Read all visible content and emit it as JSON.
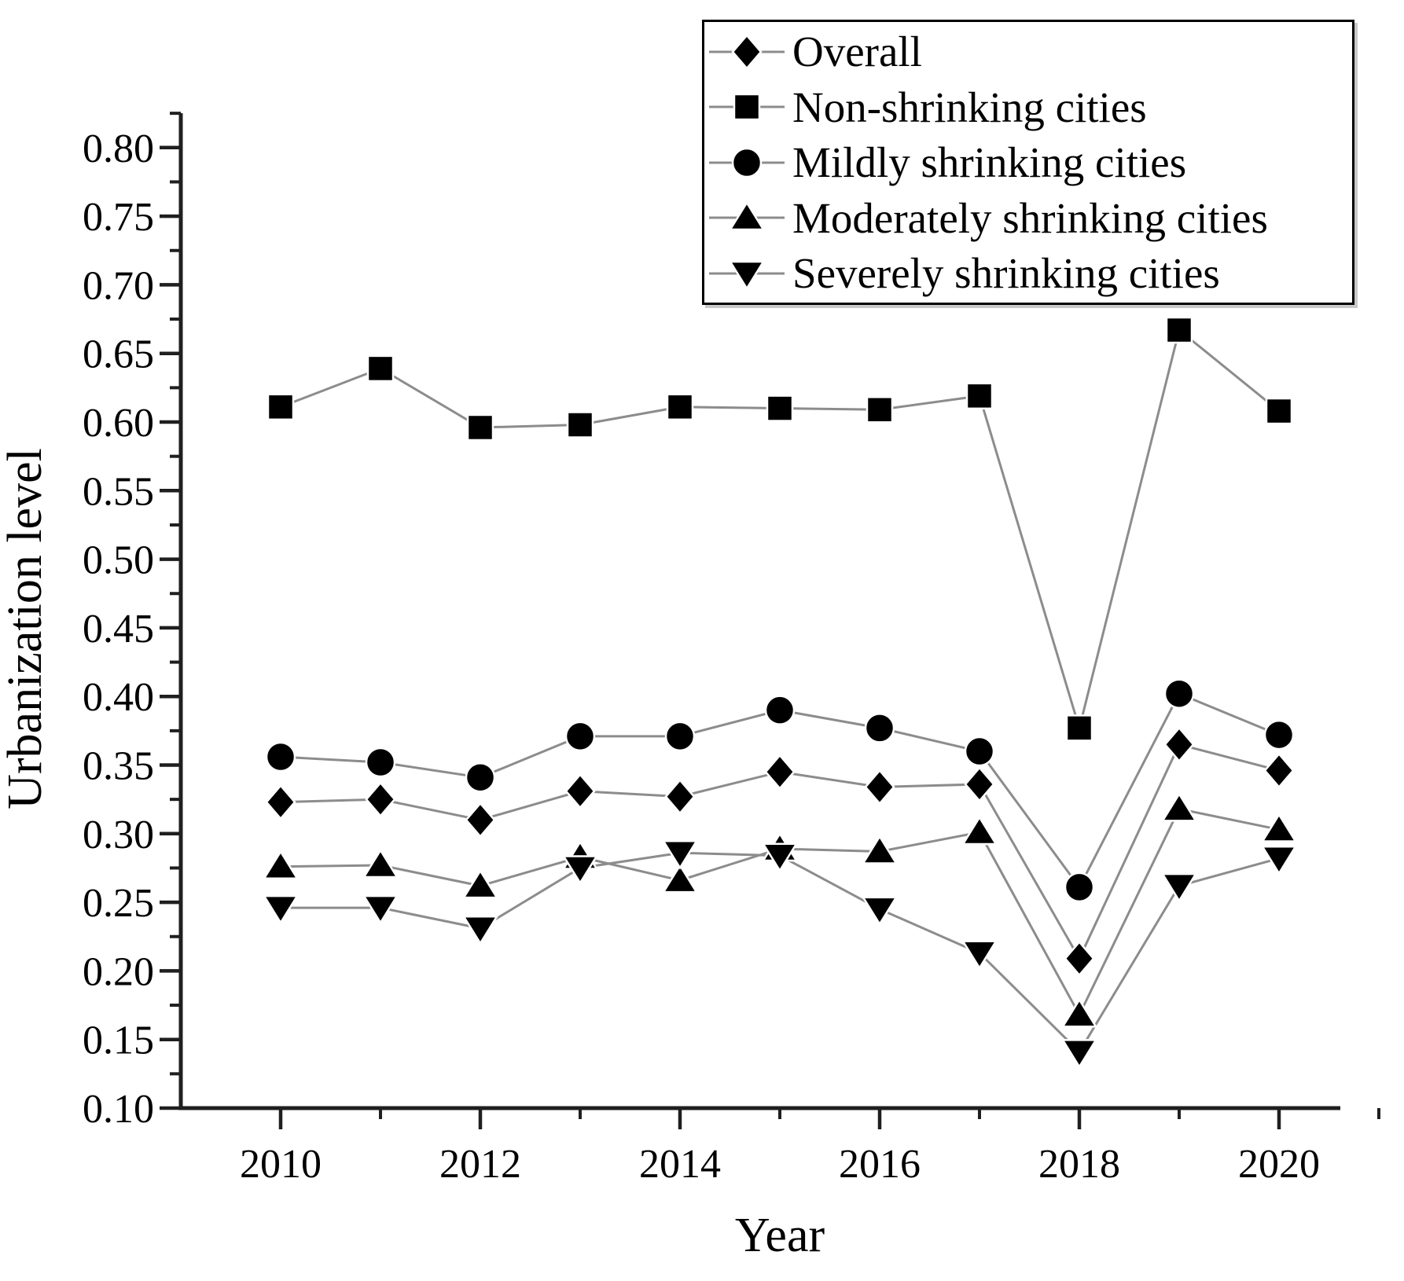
{
  "chart_data": {
    "type": "line",
    "title": "",
    "xlabel": "Year",
    "ylabel": "Urbanization level",
    "x": [
      2010,
      2011,
      2012,
      2013,
      2014,
      2015,
      2016,
      2017,
      2018,
      2019,
      2020
    ],
    "xticks_labeled": [
      2010,
      2012,
      2014,
      2016,
      2018,
      2020
    ],
    "ylim": [
      0.1,
      0.8
    ],
    "ytick_step": 0.05,
    "ytick_labels": [
      "0.10",
      "0.15",
      "0.20",
      "0.25",
      "0.30",
      "0.35",
      "0.40",
      "0.45",
      "0.50",
      "0.55",
      "0.60",
      "0.65",
      "0.70",
      "0.75",
      "0.80"
    ],
    "grid": false,
    "legend_position": "top-right",
    "line_color": "#8c8c8c",
    "marker_color": "#000000",
    "axis_color": "#1f1f1f",
    "series": [
      {
        "name": "Overall",
        "marker": "diamond",
        "values": [
          0.323,
          0.325,
          0.31,
          0.331,
          0.327,
          0.345,
          0.334,
          0.336,
          0.209,
          0.365,
          0.346
        ]
      },
      {
        "name": "Non-shrinking cities",
        "marker": "square",
        "values": [
          0.611,
          0.639,
          0.596,
          0.598,
          0.611,
          0.61,
          0.609,
          0.619,
          0.377,
          0.667,
          0.608
        ]
      },
      {
        "name": "Mildly shrinking cities",
        "marker": "circle",
        "values": [
          0.356,
          0.352,
          0.341,
          0.371,
          0.371,
          0.39,
          0.377,
          0.36,
          0.261,
          0.402,
          0.372
        ]
      },
      {
        "name": "Moderately shrinking cities",
        "marker": "triangle-up",
        "values": [
          0.276,
          0.277,
          0.262,
          0.283,
          0.266,
          0.289,
          0.287,
          0.301,
          0.168,
          0.318,
          0.303
        ]
      },
      {
        "name": "Severely shrinking cities",
        "marker": "triangle-down",
        "values": [
          0.246,
          0.246,
          0.231,
          0.275,
          0.286,
          0.284,
          0.245,
          0.213,
          0.141,
          0.262,
          0.282
        ]
      }
    ]
  }
}
